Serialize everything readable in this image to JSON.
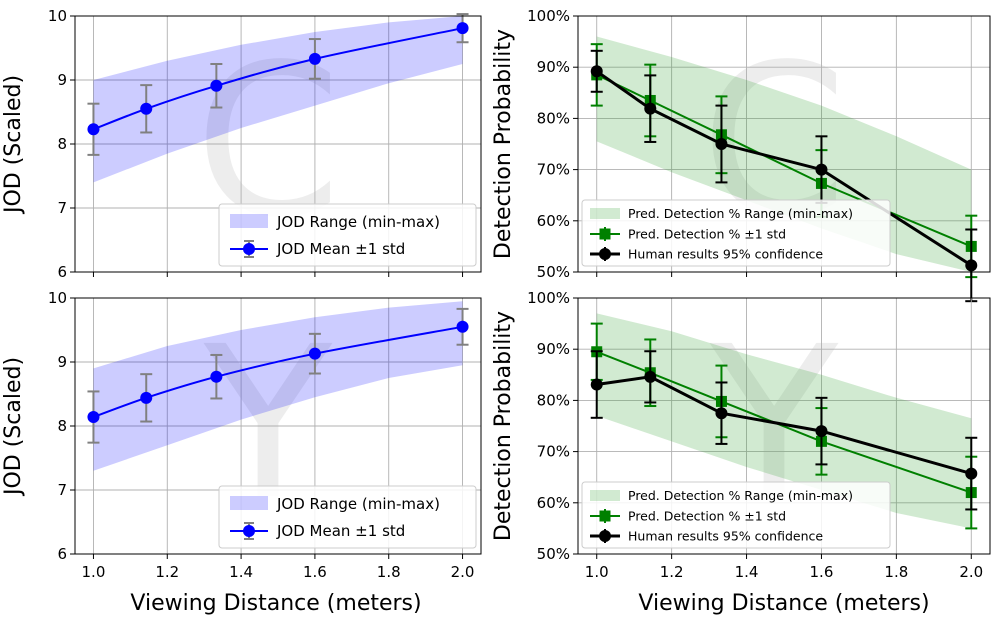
{
  "figure_xlabel": "Viewing Distance (meters)",
  "chart_data": [
    {
      "id": "jod_c",
      "type": "line",
      "watermark": "C",
      "ylabel": "JOD (Scaled)",
      "xlim": [
        0.95,
        2.05
      ],
      "ylim": [
        6,
        10
      ],
      "xticks": [
        1.0,
        1.2,
        1.4,
        1.6,
        1.8,
        2.0
      ],
      "xtick_labels": [
        "1.0",
        "1.2",
        "1.4",
        "1.6",
        "1.8",
        "2.0"
      ],
      "show_xtick_labels": false,
      "yticks": [
        6,
        7,
        8,
        9,
        10
      ],
      "ytick_labels": [
        "6",
        "7",
        "8",
        "9",
        "10"
      ],
      "grid": true,
      "legend_position": "bottom-right",
      "x": [
        1.0,
        1.143,
        1.333,
        1.6,
        2.0
      ],
      "band": {
        "name": "JOD Range (min-max)",
        "color": "#0000ff",
        "x": [
          1.0,
          1.2,
          1.4,
          1.6,
          1.8,
          2.0
        ],
        "lower": [
          7.4,
          7.85,
          8.25,
          8.6,
          8.95,
          9.25
        ],
        "upper": [
          9.0,
          9.3,
          9.55,
          9.75,
          9.9,
          10.0
        ]
      },
      "series": [
        {
          "name": "JOD Mean ±1 std",
          "color": "#0000ff",
          "marker": "circle",
          "values": [
            8.23,
            8.55,
            8.91,
            9.33,
            9.81
          ],
          "std": [
            0.4,
            0.37,
            0.34,
            0.31,
            0.22
          ],
          "err_color": "#808080"
        }
      ]
    },
    {
      "id": "det_c",
      "type": "line",
      "watermark": "C",
      "ylabel": "Detection Probability",
      "xlim": [
        0.95,
        2.05
      ],
      "ylim": [
        50,
        100
      ],
      "xticks": [
        1.0,
        1.2,
        1.4,
        1.6,
        1.8,
        2.0
      ],
      "xtick_labels": [
        "1.0",
        "1.2",
        "1.4",
        "1.6",
        "1.8",
        "2.0"
      ],
      "show_xtick_labels": false,
      "yticks": [
        50,
        60,
        70,
        80,
        90,
        100
      ],
      "ytick_labels": [
        "50%",
        "60%",
        "70%",
        "80%",
        "90%",
        "100%"
      ],
      "grid": true,
      "legend_position": "bottom-left",
      "x": [
        1.0,
        1.143,
        1.333,
        1.6,
        2.0
      ],
      "band": {
        "name": "Pred. Detection % Range (min-max)",
        "color": "#2ca02c",
        "x": [
          1.0,
          1.2,
          1.4,
          1.6,
          1.8,
          2.0
        ],
        "lower": [
          75.5,
          69.5,
          64.0,
          58.5,
          53.5,
          50.0
        ],
        "upper": [
          96.0,
          92.0,
          87.5,
          82.5,
          76.5,
          70.0
        ]
      },
      "series": [
        {
          "name": "Pred. Detection % ±1 std",
          "color": "#008000",
          "marker": "square",
          "values": [
            88.5,
            83.5,
            76.8,
            67.3,
            55.0
          ],
          "std": [
            6.0,
            7.0,
            7.5,
            6.5,
            6.0
          ],
          "err_color": "#008000"
        },
        {
          "name": "Human results 95% confidence",
          "color": "#000000",
          "marker": "circle",
          "values": [
            89.2,
            81.9,
            75.0,
            70.0,
            51.3
          ],
          "std": [
            4.0,
            6.5,
            7.5,
            6.5,
            7.0
          ],
          "err_color": "#000000"
        }
      ]
    },
    {
      "id": "jod_y",
      "type": "line",
      "watermark": "Y",
      "ylabel": "JOD (Scaled)",
      "xlim": [
        0.95,
        2.05
      ],
      "ylim": [
        6,
        10
      ],
      "xticks": [
        1.0,
        1.2,
        1.4,
        1.6,
        1.8,
        2.0
      ],
      "xtick_labels": [
        "1.0",
        "1.2",
        "1.4",
        "1.6",
        "1.8",
        "2.0"
      ],
      "show_xtick_labels": true,
      "yticks": [
        6,
        7,
        8,
        9,
        10
      ],
      "ytick_labels": [
        "6",
        "7",
        "8",
        "9",
        "10"
      ],
      "grid": true,
      "legend_position": "bottom-right",
      "x": [
        1.0,
        1.143,
        1.333,
        1.6,
        2.0
      ],
      "band": {
        "name": "JOD Range (min-max)",
        "color": "#0000ff",
        "x": [
          1.0,
          1.2,
          1.4,
          1.6,
          1.8,
          2.0
        ],
        "lower": [
          7.3,
          7.7,
          8.1,
          8.45,
          8.75,
          8.95
        ],
        "upper": [
          8.9,
          9.25,
          9.5,
          9.7,
          9.85,
          9.95
        ]
      },
      "series": [
        {
          "name": "JOD Mean ±1 std",
          "color": "#0000ff",
          "marker": "circle",
          "values": [
            8.14,
            8.44,
            8.77,
            9.13,
            9.55
          ],
          "std": [
            0.4,
            0.37,
            0.34,
            0.31,
            0.28
          ],
          "err_color": "#808080"
        }
      ]
    },
    {
      "id": "det_y",
      "type": "line",
      "watermark": "Y",
      "ylabel": "Detection Probability",
      "xlim": [
        0.95,
        2.05
      ],
      "ylim": [
        50,
        100
      ],
      "xticks": [
        1.0,
        1.2,
        1.4,
        1.6,
        1.8,
        2.0
      ],
      "xtick_labels": [
        "1.0",
        "1.2",
        "1.4",
        "1.6",
        "1.8",
        "2.0"
      ],
      "show_xtick_labels": true,
      "yticks": [
        50,
        60,
        70,
        80,
        90,
        100
      ],
      "ytick_labels": [
        "50%",
        "60%",
        "70%",
        "80%",
        "90%",
        "100%"
      ],
      "grid": true,
      "legend_position": "bottom-left",
      "x": [
        1.0,
        1.143,
        1.333,
        1.6,
        2.0
      ],
      "band": {
        "name": "Pred. Detection % Range (min-max)",
        "color": "#2ca02c",
        "x": [
          1.0,
          1.2,
          1.4,
          1.6,
          1.8,
          2.0
        ],
        "lower": [
          77.0,
          72.0,
          67.0,
          62.5,
          58.0,
          55.0
        ],
        "upper": [
          97.0,
          93.5,
          89.0,
          85.0,
          80.5,
          76.5
        ]
      },
      "series": [
        {
          "name": "Pred. Detection % ±1 std",
          "color": "#008000",
          "marker": "square",
          "values": [
            89.5,
            85.4,
            79.8,
            72.0,
            62.0
          ],
          "std": [
            5.5,
            6.5,
            7.0,
            6.5,
            7.0
          ],
          "err_color": "#008000"
        },
        {
          "name": "Human results 95% confidence",
          "color": "#000000",
          "marker": "circle",
          "values": [
            83.1,
            84.6,
            77.5,
            74.0,
            65.7
          ],
          "std": [
            6.5,
            5.0,
            6.0,
            6.5,
            7.0
          ],
          "err_color": "#000000"
        }
      ]
    }
  ]
}
